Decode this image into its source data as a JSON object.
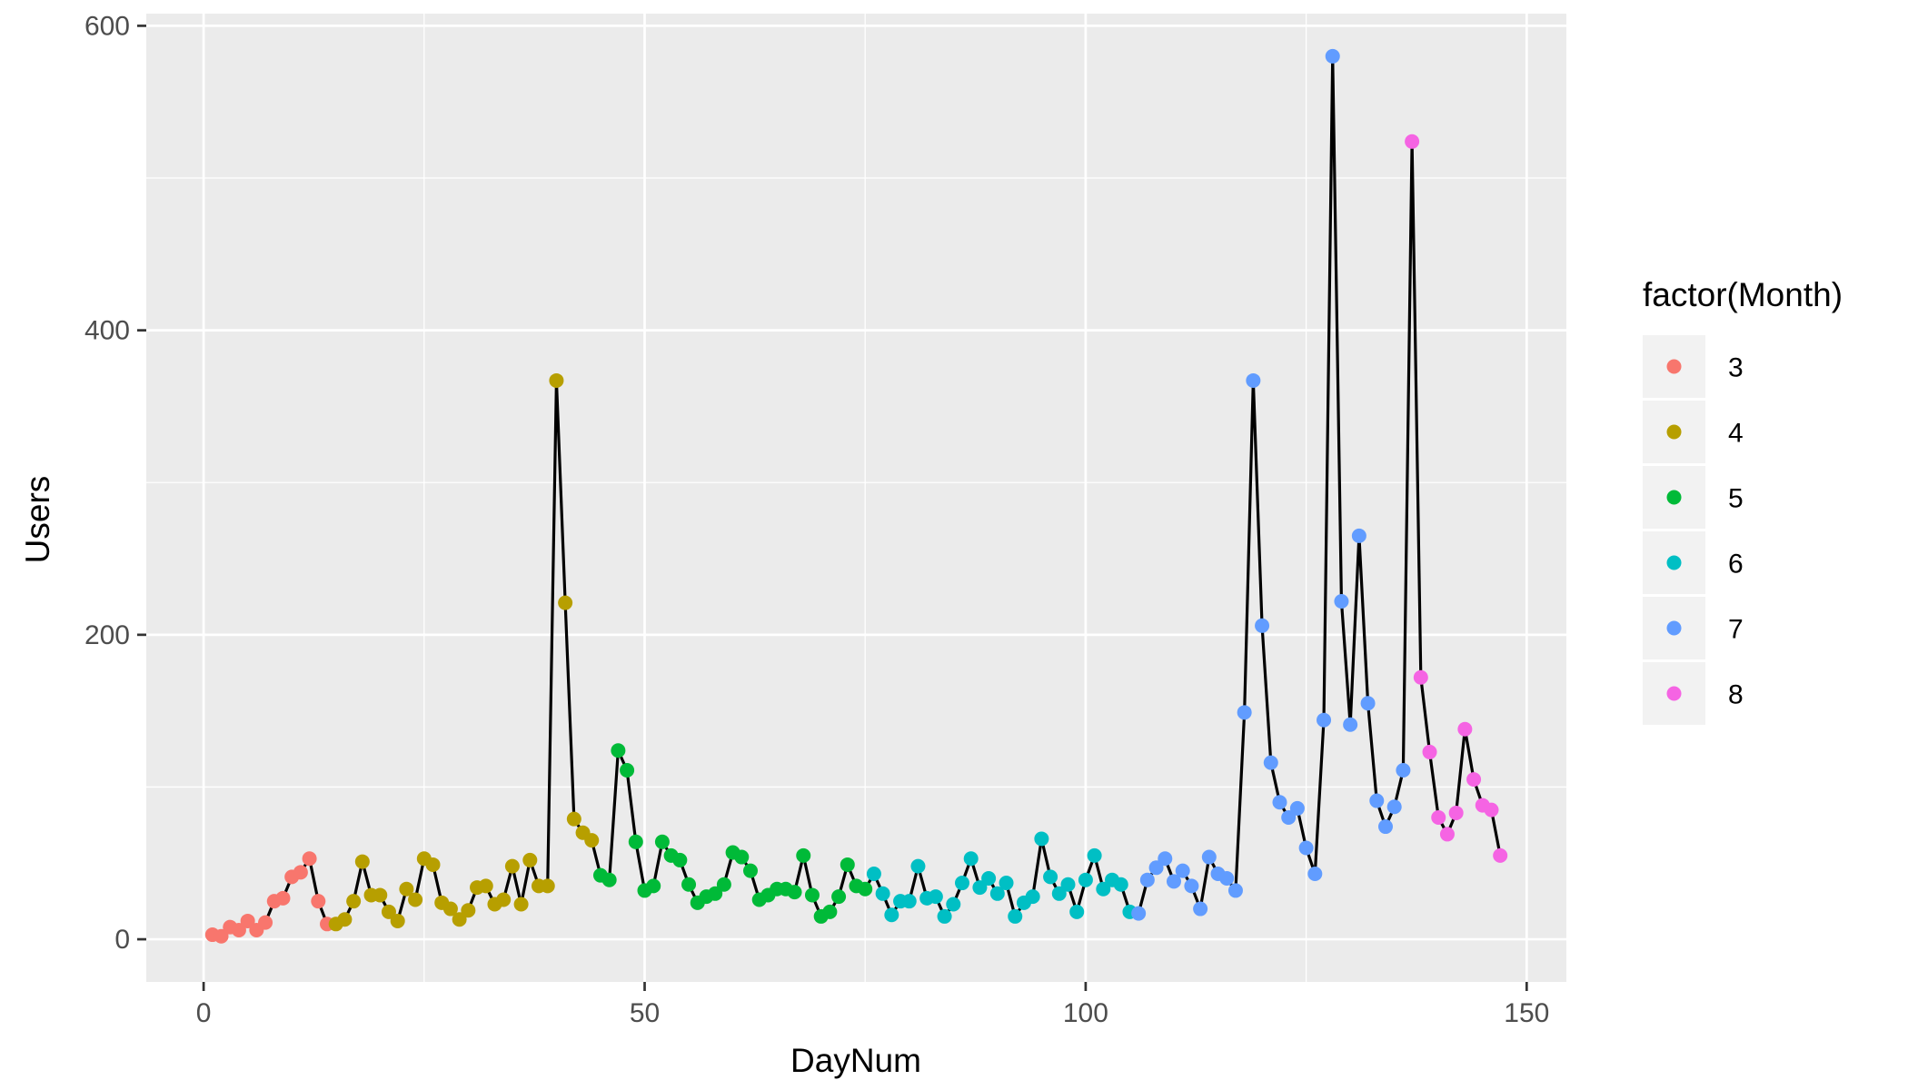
{
  "chart_data": {
    "type": "line",
    "xlabel": "DayNum",
    "ylabel": "Users",
    "xlim": [
      -6.5,
      154.5
    ],
    "ylim": [
      -28,
      608
    ],
    "x_ticks": [
      0,
      50,
      100,
      150
    ],
    "x_tick_labels": [
      "0",
      "50",
      "100",
      "150"
    ],
    "y_ticks": [
      0,
      200,
      400,
      600
    ],
    "y_tick_labels": [
      "0",
      "200",
      "400",
      "600"
    ],
    "grid": true,
    "legend": {
      "title": "factor(Month)",
      "placement": "right",
      "entries": [
        {
          "label": "3",
          "color": "#F8766D"
        },
        {
          "label": "4",
          "color": "#B79F00"
        },
        {
          "label": "5",
          "color": "#00BA38"
        },
        {
          "label": "6",
          "color": "#00BFC4"
        },
        {
          "label": "7",
          "color": "#619CFF"
        },
        {
          "label": "8",
          "color": "#F564E3"
        }
      ]
    },
    "line_color": "#000000",
    "panel_color": "#EBEBEB",
    "series": [
      {
        "name": "3",
        "x": [
          1,
          2,
          3,
          4,
          5,
          6,
          7,
          8,
          9,
          10,
          11,
          12,
          13,
          14
        ],
        "y": [
          3,
          2,
          8,
          6,
          12,
          6,
          11,
          25,
          27,
          41,
          44,
          53,
          25,
          10
        ]
      },
      {
        "name": "4",
        "x": [
          15,
          16,
          17,
          18,
          19,
          20,
          21,
          22,
          23,
          24,
          25,
          26,
          27,
          28,
          29,
          30,
          31,
          32,
          33,
          34,
          35,
          36,
          37,
          38,
          39,
          40,
          41,
          42,
          43,
          44
        ],
        "y": [
          10,
          13,
          25,
          51,
          29,
          29,
          18,
          12,
          33,
          26,
          53,
          49,
          24,
          20,
          13,
          19,
          34,
          35,
          23,
          26,
          48,
          23,
          52,
          35,
          35,
          367,
          221,
          79,
          70,
          65
        ]
      },
      {
        "name": "5",
        "x": [
          45,
          46,
          47,
          48,
          49,
          50,
          51,
          52,
          53,
          54,
          55,
          56,
          57,
          58,
          59,
          60,
          61,
          62,
          63,
          64,
          65,
          66,
          67,
          68,
          69,
          70,
          71,
          72,
          73,
          74,
          75
        ],
        "y": [
          42,
          39,
          124,
          111,
          64,
          32,
          35,
          64,
          55,
          52,
          36,
          24,
          28,
          30,
          36,
          57,
          54,
          45,
          26,
          29,
          33,
          33,
          31,
          55,
          29,
          15,
          18,
          28,
          49,
          35,
          33
        ]
      },
      {
        "name": "6",
        "x": [
          76,
          77,
          78,
          79,
          80,
          81,
          82,
          83,
          84,
          85,
          86,
          87,
          88,
          89,
          90,
          91,
          92,
          93,
          94,
          95,
          96,
          97,
          98,
          99,
          100,
          101,
          102,
          103,
          104,
          105
        ],
        "y": [
          43,
          30,
          16,
          25,
          25,
          48,
          27,
          28,
          15,
          23,
          37,
          53,
          34,
          40,
          30,
          37,
          15,
          24,
          28,
          66,
          41,
          30,
          36,
          18,
          39,
          55,
          33,
          39,
          36,
          18
        ]
      },
      {
        "name": "7",
        "x": [
          106,
          107,
          108,
          109,
          110,
          111,
          112,
          113,
          114,
          115,
          116,
          117,
          118,
          119,
          120,
          121,
          122,
          123,
          124,
          125,
          126,
          127,
          128,
          129,
          130,
          131,
          132,
          133,
          134,
          135,
          136
        ],
        "y": [
          17,
          39,
          47,
          53,
          38,
          45,
          35,
          20,
          54,
          43,
          40,
          32,
          149,
          367,
          206,
          116,
          90,
          80,
          86,
          60,
          43,
          144,
          580,
          222,
          141,
          265,
          155,
          91,
          74,
          87,
          111
        ]
      },
      {
        "name": "8",
        "x": [
          137,
          138,
          139,
          140,
          141,
          142,
          143,
          144,
          145,
          146,
          147
        ],
        "y": [
          524,
          172,
          123,
          80,
          69,
          83,
          138,
          105,
          88,
          85,
          55
        ]
      }
    ]
  }
}
